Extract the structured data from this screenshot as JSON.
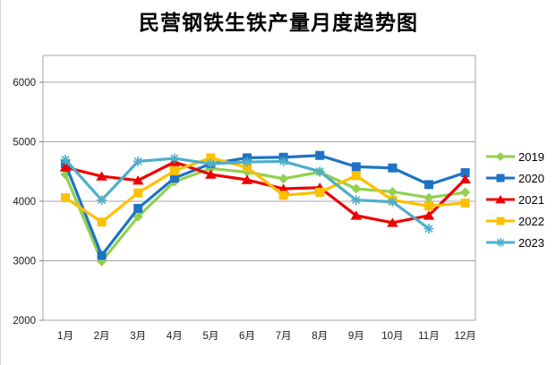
{
  "window": {
    "background": "#ffffff"
  },
  "chart_data": {
    "type": "line",
    "title": "民营钢铁生铁产量月度趋势图",
    "xlabel": "",
    "ylabel": "",
    "categories": [
      "1月",
      "2月",
      "3月",
      "4月",
      "5月",
      "6月",
      "7月",
      "8月",
      "9月",
      "10月",
      "11月",
      "12月"
    ],
    "yticks": [
      2000,
      3000,
      4000,
      5000,
      6000
    ],
    "ylim": [
      2000,
      6450
    ],
    "grid": true,
    "legend_position": "right",
    "series": [
      {
        "name": "2019",
        "color": "#92D050",
        "marker": "diamond",
        "values": [
          4450,
          2990,
          3740,
          4330,
          4550,
          4490,
          4380,
          4490,
          4210,
          4160,
          4060,
          4150
        ]
      },
      {
        "name": "2020",
        "color": "#1E73C4",
        "marker": "square",
        "values": [
          4630,
          3090,
          3880,
          4390,
          4630,
          4730,
          4740,
          4770,
          4580,
          4560,
          4280,
          4480
        ]
      },
      {
        "name": "2021",
        "color": "#EE0000",
        "marker": "triangle",
        "values": [
          4570,
          4420,
          4350,
          4660,
          4450,
          4360,
          4210,
          4230,
          3760,
          3640,
          3760,
          4370
        ]
      },
      {
        "name": "2022",
        "color": "#FFC000",
        "marker": "square",
        "values": [
          4060,
          3650,
          4140,
          4510,
          4730,
          4570,
          4100,
          4150,
          4430,
          4020,
          3920,
          3970
        ]
      },
      {
        "name": "2023",
        "color": "#4FAECB",
        "marker": "star",
        "values": [
          4700,
          4020,
          4670,
          4720,
          4630,
          4660,
          4670,
          4500,
          4020,
          3990,
          3540,
          null
        ]
      }
    ],
    "colors": {
      "gridline": "#A6A6A6",
      "plot_border": "#A6A6A6",
      "tick": "#7F7F7F",
      "axis_text": "#1A1A1A"
    }
  }
}
